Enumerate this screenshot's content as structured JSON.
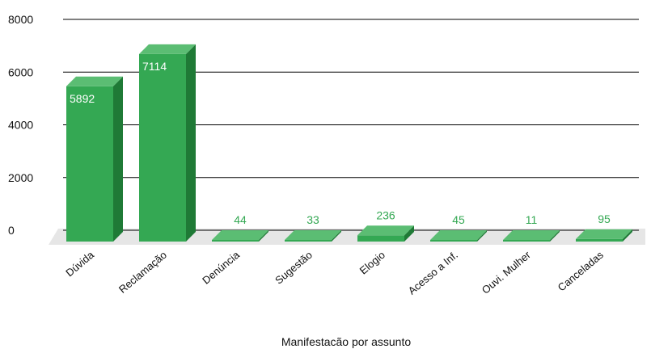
{
  "colors": {
    "bar_front": "#34a853",
    "bar_side": "#1f7a36",
    "bar_top": "#5bbd73",
    "floor": "#e6e6e6",
    "grid": "#000000",
    "label_inside": "#ffffff",
    "label_outside": "#34a853"
  },
  "chart_data": {
    "type": "bar",
    "title": "",
    "xlabel": "Manifestacão por assunto",
    "ylabel": "",
    "ylim": [
      0,
      8000
    ],
    "yticks": [
      "0",
      "2000",
      "4000",
      "6000",
      "8000"
    ],
    "grid": true,
    "legend": "none",
    "categories": [
      "Dúvida",
      "Reclamação",
      "Denúncia",
      "Sugestão",
      "Elogio",
      "Acesso a Inf.",
      "Ouvi. Mulher",
      "Canceladas"
    ],
    "values": [
      5892,
      7114,
      44,
      33,
      236,
      45,
      11,
      95
    ],
    "value_labels": [
      "5892",
      "7114",
      "44",
      "33",
      "236",
      "45",
      "11",
      "95"
    ]
  }
}
